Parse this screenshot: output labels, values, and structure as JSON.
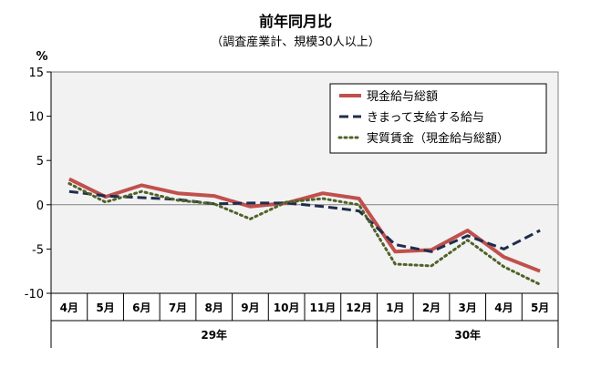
{
  "chart_data": {
    "type": "line",
    "title": "前年同月比",
    "subtitle": "（調査産業計、規模30人以上）",
    "ylabel": "%",
    "ylim": [
      -10,
      15
    ],
    "yticks": [
      15,
      10,
      5,
      0,
      -5,
      -10
    ],
    "grid": "horizontal at 0",
    "legend_position": "top-right",
    "categories": [
      "4月",
      "5月",
      "6月",
      "7月",
      "8月",
      "9月",
      "10月",
      "11月",
      "12月",
      "1月",
      "2月",
      "3月",
      "4月",
      "5月"
    ],
    "groups": [
      {
        "label": "29年",
        "count": 9
      },
      {
        "label": "30年",
        "count": 5
      }
    ],
    "series": [
      {
        "name": "現金給与総額",
        "color": "#c0504d",
        "style": "solid",
        "values": [
          2.9,
          0.9,
          2.2,
          1.3,
          1.0,
          -0.2,
          0.2,
          1.3,
          0.7,
          -5.3,
          -5.1,
          -2.9,
          -5.9,
          -7.5
        ]
      },
      {
        "name": "きまって支給する給与",
        "color": "#1f2d4d",
        "style": "dashed",
        "values": [
          1.5,
          1.0,
          0.8,
          0.6,
          0.1,
          0.2,
          0.2,
          -0.2,
          -0.7,
          -4.5,
          -5.3,
          -3.5,
          -5.0,
          -2.9
        ]
      },
      {
        "name": "実質賃金（現金給与総額）",
        "color": "#4f6228",
        "style": "dotted",
        "values": [
          2.4,
          0.3,
          1.5,
          0.5,
          0.1,
          -1.6,
          0.3,
          0.7,
          0.0,
          -6.7,
          -6.9,
          -4.0,
          -7.0,
          -9.0
        ]
      }
    ]
  }
}
